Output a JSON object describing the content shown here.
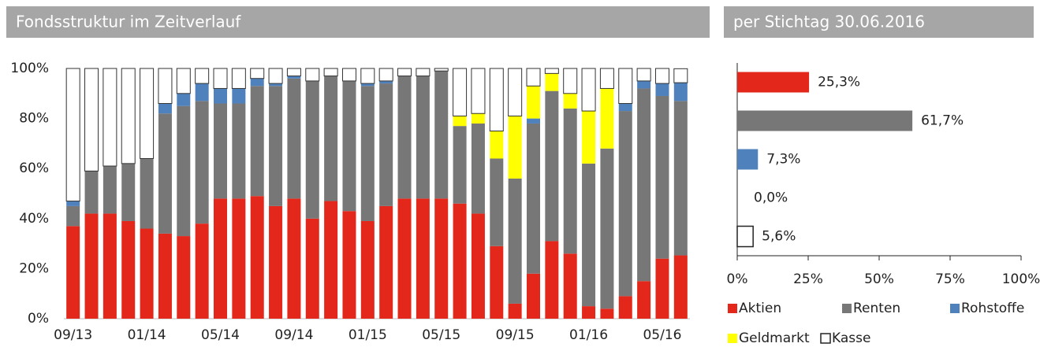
{
  "chart_data": [
    {
      "type": "stacked_bar",
      "title": "Fondsstruktur im Zeitverlauf",
      "categories": [
        "09/13",
        null,
        null,
        null,
        "01/14",
        null,
        null,
        null,
        "05/14",
        null,
        null,
        null,
        "09/14",
        null,
        null,
        null,
        "01/15",
        null,
        null,
        null,
        "05/15",
        null,
        null,
        null,
        "09/15",
        null,
        null,
        null,
        "01/16",
        null,
        null,
        null,
        "05/16",
        null
      ],
      "series": [
        {
          "name": "Aktien",
          "color": "#e3271b",
          "values": [
            37,
            42,
            42,
            39,
            36,
            34,
            33,
            38,
            48,
            48,
            49,
            45,
            48,
            40,
            47,
            43,
            39,
            45,
            48,
            48,
            48,
            46,
            42,
            29,
            6,
            18,
            31,
            26,
            5,
            4,
            9,
            15,
            24,
            25.3
          ]
        },
        {
          "name": "Renten",
          "color": "#777777",
          "values": [
            8,
            17,
            19,
            23,
            28,
            48,
            52,
            49,
            38,
            38,
            44,
            48,
            48,
            55,
            50,
            52,
            54,
            49,
            49,
            49,
            51,
            31,
            36,
            35,
            50,
            60,
            60,
            58,
            57,
            64,
            74,
            77,
            65,
            61.7
          ]
        },
        {
          "name": "Rohstoffe",
          "color": "#4f81bd",
          "values": [
            2,
            0,
            0,
            0,
            0,
            4,
            5,
            7,
            6,
            6,
            3,
            1,
            1,
            0,
            0,
            0,
            1,
            1,
            0,
            0,
            0,
            0,
            0,
            0,
            0,
            2,
            0,
            0,
            0,
            0,
            3,
            3,
            5,
            7.3
          ]
        },
        {
          "name": "Geldmarkt",
          "color": "#ffff00",
          "values": [
            0,
            0,
            0,
            0,
            0,
            0,
            0,
            0,
            0,
            0,
            0,
            0,
            0,
            0,
            0,
            0,
            0,
            0,
            0,
            0,
            0,
            4,
            4,
            11,
            25,
            13,
            7,
            6,
            21,
            24,
            0,
            0,
            0,
            0
          ]
        },
        {
          "name": "Kasse",
          "color": "#ffffff",
          "values": [
            53,
            41,
            39,
            38,
            36,
            14,
            10,
            6,
            8,
            8,
            4,
            6,
            3,
            5,
            3,
            5,
            6,
            5,
            3,
            3,
            1,
            19,
            18,
            25,
            19,
            7,
            2,
            10,
            17,
            8,
            14,
            5,
            6,
            5.6
          ]
        }
      ],
      "ylim": [
        0,
        100
      ],
      "yticks": [
        {
          "value": 0,
          "label": "0%"
        },
        {
          "value": 20,
          "label": "20%"
        },
        {
          "value": 40,
          "label": "40%"
        },
        {
          "value": 60,
          "label": "60%"
        },
        {
          "value": 80,
          "label": "80%"
        },
        {
          "value": 100,
          "label": "100%"
        }
      ]
    },
    {
      "type": "barh",
      "title": "per Stichtag 30.06.2016",
      "values": [
        25.3,
        61.7,
        7.3,
        0,
        5.6
      ],
      "value_labels": [
        "25,3%",
        "61,7%",
        "7,3%",
        "0,0%",
        "5,6%"
      ],
      "xlim": [
        0,
        100
      ],
      "xticks": [
        {
          "value": 0,
          "label": "0%"
        },
        {
          "value": 25,
          "label": "25%"
        },
        {
          "value": 50,
          "label": "50%"
        },
        {
          "value": 75,
          "label": "75%"
        },
        {
          "value": 100,
          "label": "100%"
        }
      ]
    }
  ]
}
